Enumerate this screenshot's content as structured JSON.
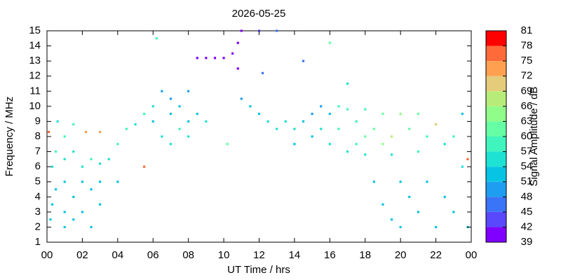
{
  "chart_data": {
    "type": "scatter",
    "title": "2026-05-25",
    "x_label": "UT Time / hrs",
    "y_label": "Frequency / MHz",
    "colorbar_label": "Signal Amplitude / dB",
    "xlim": [
      0,
      24
    ],
    "xticks": [
      {
        "value": 0,
        "label": "00"
      },
      {
        "value": 2,
        "label": "02"
      },
      {
        "value": 4,
        "label": "04"
      },
      {
        "value": 6,
        "label": "06"
      },
      {
        "value": 8,
        "label": "08"
      },
      10,
      12,
      14,
      16,
      18,
      20,
      22,
      {
        "value": 24,
        "label": "00"
      }
    ],
    "ylim": [
      1,
      15
    ],
    "yticks": [
      1,
      2,
      3,
      4,
      5,
      6,
      7,
      8,
      9,
      10,
      11,
      12,
      13,
      14,
      15
    ],
    "zlim": [
      39,
      81
    ],
    "zticks": [
      39,
      42,
      45,
      48,
      51,
      54,
      57,
      60,
      63,
      66,
      69,
      72,
      75,
      78,
      81
    ],
    "colormap": [
      "#8000ff",
      "#5a48fc",
      "#3a74f7",
      "#1e9ef0",
      "#08c4e4",
      "#1ee2d4",
      "#40f4be",
      "#66fea4",
      "#90fc8a",
      "#b8ec78",
      "#e4cc7a",
      "#ffa050",
      "#ff6a3a",
      "#ff0000"
    ],
    "x": [
      0.1,
      0.2,
      0.3,
      0.3,
      0.5,
      0.5,
      0.6,
      1,
      1,
      1,
      1,
      1,
      1.5,
      1.5,
      1.5,
      1.5,
      2,
      2,
      2,
      2.2,
      2.5,
      2.5,
      2.5,
      3,
      3,
      3,
      3,
      3.5,
      4,
      4,
      4.5,
      5,
      5.5,
      5.5,
      6,
      6,
      6.2,
      6.5,
      6.5,
      7,
      7,
      7,
      7.5,
      7.5,
      8,
      8,
      8,
      8.5,
      8.5,
      9,
      9,
      9.5,
      10,
      10.2,
      10.5,
      10.8,
      10.8,
      11,
      11,
      11.5,
      12,
      12,
      12.2,
      12.5,
      13,
      13,
      13.5,
      14,
      14,
      14.5,
      14.5,
      15,
      15,
      15.5,
      15.5,
      16,
      16,
      16,
      16.5,
      16.5,
      17,
      17,
      17,
      17.5,
      17.5,
      18,
      18,
      18,
      18.5,
      18.5,
      19,
      19,
      19,
      19.5,
      19.5,
      19.5,
      20,
      20,
      20,
      20.5,
      20.5,
      21,
      21,
      21,
      21.5,
      21.5,
      22,
      22,
      22.5,
      22.5,
      23,
      23,
      23.5,
      23.5,
      23.8,
      23.8
    ],
    "y": [
      8.3,
      2.5,
      3.5,
      6,
      4.5,
      7,
      9,
      2,
      3,
      5,
      6.5,
      8,
      2.5,
      4,
      7,
      8.8,
      3,
      5,
      6,
      8.3,
      2,
      4.5,
      6.5,
      3.5,
      5,
      8.3,
      6.2,
      6.5,
      7.5,
      5,
      8.5,
      8.8,
      9.5,
      6,
      10,
      9,
      14.5,
      11,
      8,
      10.5,
      9.5,
      7.5,
      10,
      8.5,
      11,
      9,
      8,
      9.5,
      13.2,
      13.2,
      9,
      13.2,
      13.2,
      7.5,
      13.5,
      12.5,
      14.2,
      15,
      10.5,
      10,
      9.5,
      15,
      12.2,
      9,
      15,
      8.5,
      9,
      8.5,
      7.5,
      9,
      13,
      9.5,
      8,
      10,
      8.5,
      9.5,
      7.5,
      14.2,
      10,
      8.5,
      9.8,
      7,
      11.5,
      9,
      7.5,
      9.8,
      8,
      6.8,
      8.5,
      5,
      9.5,
      7.5,
      3.5,
      8,
      6.8,
      2.5,
      9.5,
      5,
      2,
      8.5,
      4,
      9.5,
      7,
      3,
      8,
      5,
      8.8,
      2,
      7.5,
      4,
      8,
      3,
      9.5,
      6,
      6.5,
      2
    ],
    "z": [
      75,
      51,
      51,
      54,
      51,
      57,
      54,
      51,
      51,
      51,
      54,
      57,
      51,
      51,
      54,
      57,
      51,
      51,
      54,
      72,
      51,
      51,
      57,
      51,
      51,
      72,
      54,
      54,
      57,
      51,
      57,
      54,
      57,
      75,
      54,
      51,
      57,
      48,
      54,
      48,
      51,
      54,
      51,
      57,
      48,
      51,
      54,
      51,
      39,
      39,
      54,
      39,
      39,
      60,
      39,
      39,
      39,
      39,
      48,
      51,
      51,
      42,
      45,
      54,
      45,
      54,
      54,
      54,
      51,
      51,
      45,
      48,
      51,
      48,
      54,
      51,
      54,
      60,
      57,
      57,
      57,
      54,
      54,
      57,
      57,
      57,
      60,
      54,
      60,
      51,
      60,
      63,
      51,
      66,
      54,
      51,
      63,
      51,
      51,
      60,
      51,
      60,
      57,
      51,
      57,
      51,
      69,
      51,
      54,
      51,
      57,
      51,
      51,
      54,
      75,
      51
    ]
  }
}
